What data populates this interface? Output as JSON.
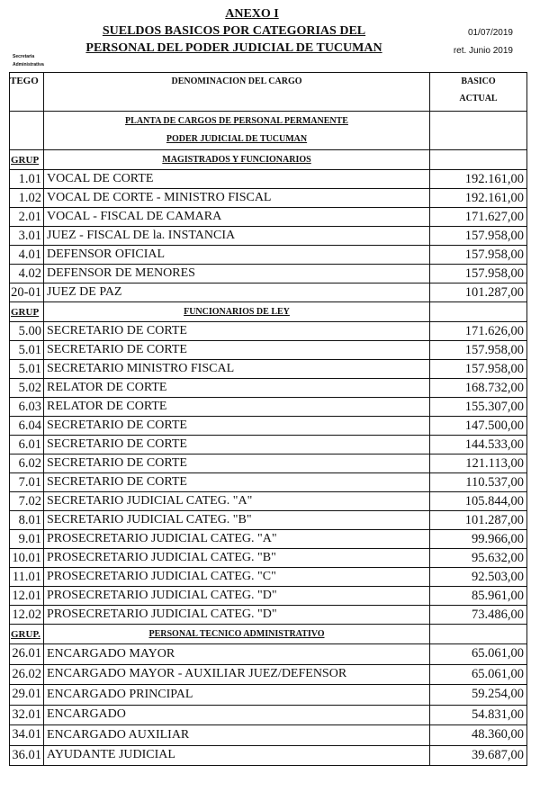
{
  "header": {
    "annex": "ANEXO I",
    "title_line1": "SUELDOS BASICOS POR CATEGORIAS DEL",
    "title_line2": "PERSONAL DEL PODER JUDICIAL DE TUCUMAN",
    "date": "01/07/2019",
    "ret": "ret. Junio 2019",
    "side_note_1": "Secretaria",
    "side_note_2": "Administrativa"
  },
  "table": {
    "col_code": "TEGO",
    "col_name": "DENOMINACION  DEL  CARGO",
    "col_value_1": "BASICO",
    "col_value_2": "ACTUAL",
    "planta_1": "PLANTA DE CARGOS DE PERSONAL PERMANENTE",
    "planta_2": "PODER JUDICIAL DE TUCUMAN",
    "sections": [
      {
        "group_label": "GRUP",
        "title": "MAGISTRADOS  Y  FUNCIONARIOS",
        "rows": [
          {
            "code": "1.01",
            "name": "VOCAL DE CORTE",
            "value": "192.161,00"
          },
          {
            "code": "1.02",
            "name": "VOCAL DE CORTE - MINISTRO FISCAL",
            "value": "192.161,00"
          },
          {
            "code": "2.01",
            "name": "VOCAL - FISCAL DE CAMARA",
            "value": "171.627,00"
          },
          {
            "code": "3.01",
            "name": "JUEZ - FISCAL DE la. INSTANCIA",
            "value": "157.958,00"
          },
          {
            "code": "4.01",
            "name": "DEFENSOR OFICIAL",
            "value": "157.958,00"
          },
          {
            "code": "4.02",
            "name": "DEFENSOR DE MENORES",
            "value": "157.958,00"
          },
          {
            "code": "20-01",
            "name": "JUEZ DE PAZ",
            "value": "101.287,00"
          }
        ]
      },
      {
        "group_label": "GRUP",
        "title": "FUNCIONARIOS  DE  LEY",
        "rows": [
          {
            "code": "5.00",
            "name": "SECRETARIO DE CORTE",
            "value": "171.626,00"
          },
          {
            "code": "5.01",
            "name": "SECRETARIO DE CORTE",
            "value": "157.958,00"
          },
          {
            "code": "5.01",
            "name": "SECRETARIO MINISTRO FISCAL",
            "value": "157.958,00"
          },
          {
            "code": "5.02",
            "name": "RELATOR DE CORTE",
            "value": "168.732,00"
          },
          {
            "code": "6.03",
            "name": "RELATOR DE CORTE",
            "value": "155.307,00"
          },
          {
            "code": "6.04",
            "name": "SECRETARIO DE CORTE",
            "value": "147.500,00"
          },
          {
            "code": "6.01",
            "name": "SECRETARIO DE CORTE",
            "value": "144.533,00"
          },
          {
            "code": "6.02",
            "name": "SECRETARIO DE CORTE",
            "value": "121.113,00"
          },
          {
            "code": "7.01",
            "name": "SECRETARIO DE CORTE",
            "value": "110.537,00"
          },
          {
            "code": "7.02",
            "name": "SECRETARIO JUDICIAL CATEG. \"A\"",
            "value": "105.844,00"
          },
          {
            "code": "8.01",
            "name": "SECRETARIO JUDICIAL CATEG. \"B\"",
            "value": "101.287,00"
          },
          {
            "code": "9.01",
            "name": "PROSECRETARIO JUDICIAL CATEG. \"A\"",
            "value": "99.966,00"
          },
          {
            "code": "10.01",
            "name": "PROSECRETARIO JUDICIAL CATEG. \"B\"",
            "value": "95.632,00"
          },
          {
            "code": "11.01",
            "name": "PROSECRETARIO JUDICIAL CATEG. \"C\"",
            "value": "92.503,00"
          },
          {
            "code": "12.01",
            "name": "PROSECRETARIO JUDICIAL CATEG. \"D\"",
            "value": "85.961,00"
          },
          {
            "code": "12.02",
            "name": "PROSECRETARIO JUDICIAL CATEG. \"D\"",
            "value": "73.486,00"
          }
        ]
      },
      {
        "group_label": "GRUP.",
        "title": "PERSONAL TECNICO ADMINISTRATIVO",
        "rows": [
          {
            "code": "26.01",
            "name": "ENCARGADO MAYOR",
            "value": "65.061,00"
          },
          {
            "code": "26.02",
            "name": "ENCARGADO MAYOR - AUXILIAR  JUEZ/DEFENSOR",
            "value": "65.061,00"
          },
          {
            "code": "29.01",
            "name": "ENCARGADO PRINCIPAL",
            "value": "59.254,00"
          },
          {
            "code": "32.01",
            "name": "ENCARGADO",
            "value": "54.831,00"
          },
          {
            "code": "34.01",
            "name": "ENCARGADO AUXILIAR",
            "value": "48.360,00"
          },
          {
            "code": "36.01",
            "name": "AYUDANTE JUDICIAL",
            "value": "39.687,00"
          }
        ]
      }
    ]
  }
}
